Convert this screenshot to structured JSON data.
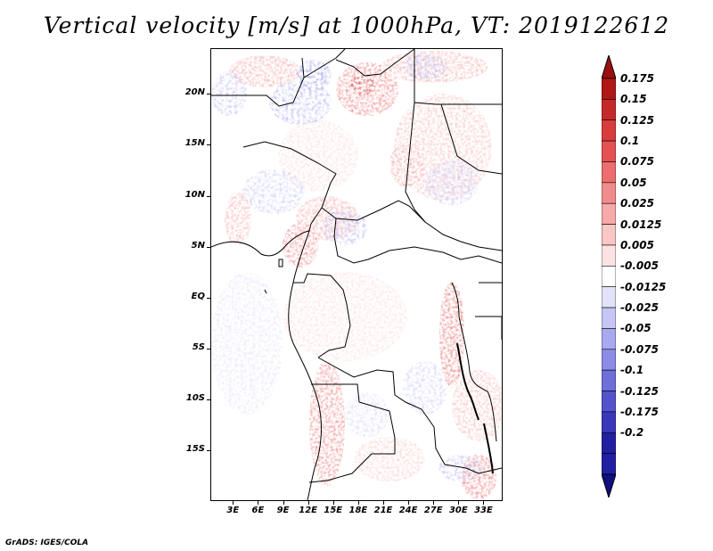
{
  "title": "Vertical velocity [m/s] at 1000hPa, VT: 2019122612",
  "credit": "GrADS: IGES/COLA",
  "axes": {
    "lat_labels": [
      {
        "text": "20N",
        "lat": 20
      },
      {
        "text": "15N",
        "lat": 15
      },
      {
        "text": "10N",
        "lat": 10
      },
      {
        "text": "5N",
        "lat": 5
      },
      {
        "text": "EQ",
        "lat": 0
      },
      {
        "text": "5S",
        "lat": -5
      },
      {
        "text": "10S",
        "lat": -10
      },
      {
        "text": "15S",
        "lat": -15
      }
    ],
    "lon_labels": [
      {
        "text": "3E",
        "lon": 3
      },
      {
        "text": "6E",
        "lon": 6
      },
      {
        "text": "9E",
        "lon": 9
      },
      {
        "text": "12E",
        "lon": 12
      },
      {
        "text": "15E",
        "lon": 15
      },
      {
        "text": "18E",
        "lon": 18
      },
      {
        "text": "21E",
        "lon": 21
      },
      {
        "text": "24E",
        "lon": 24
      },
      {
        "text": "27E",
        "lon": 27
      },
      {
        "text": "30E",
        "lon": 30
      },
      {
        "text": "33E",
        "lon": 33
      }
    ],
    "lon_range": [
      0.3,
      35.3
    ],
    "lat_range": [
      -20.0,
      24.5
    ]
  },
  "colorbar": {
    "levels": [
      {
        "label": "0.175",
        "color": "#b01818"
      },
      {
        "label": "0.15",
        "color": "#c52a2a"
      },
      {
        "label": "0.125",
        "color": "#d83c3c"
      },
      {
        "label": "0.1",
        "color": "#e45252"
      },
      {
        "label": "0.075",
        "color": "#ec6e6e"
      },
      {
        "label": "0.05",
        "color": "#f28c8c"
      },
      {
        "label": "0.025",
        "color": "#f7aaaa"
      },
      {
        "label": "0.0125",
        "color": "#fac6c6"
      },
      {
        "label": "0.005",
        "color": "#fde2e2"
      },
      {
        "label": "-0.005",
        "color": "#ffffff"
      },
      {
        "label": "-0.0125",
        "color": "#e2e2fb"
      },
      {
        "label": "-0.025",
        "color": "#c6c6f6"
      },
      {
        "label": "-0.05",
        "color": "#a9a9f0"
      },
      {
        "label": "-0.075",
        "color": "#8c8ce6"
      },
      {
        "label": "-0.1",
        "color": "#6f6fda"
      },
      {
        "label": "-0.125",
        "color": "#5353cc"
      },
      {
        "label": "-0.175",
        "color": "#3838b8"
      },
      {
        "label": "-0.2",
        "color": "#2020a0"
      }
    ],
    "top_color": "#9a1010",
    "bottom_color": "#101080"
  }
}
